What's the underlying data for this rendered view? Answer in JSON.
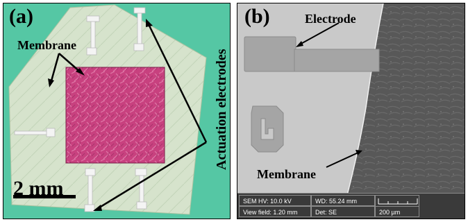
{
  "panel_a": {
    "label": "(a)",
    "membrane_label": "Membrane",
    "actuation_label": "Actuation electrodes",
    "scale_text": "2 mm",
    "colors": {
      "substrate": "#55c7a4",
      "membrane": "#d8e6cf",
      "window": "#c8417f"
    }
  },
  "panel_b": {
    "label": "(b)",
    "electrode_label": "Electrode",
    "membrane_label": "Membrane",
    "sem": {
      "hv": "SEM HV: 10.0 kV",
      "wd": "WD: 55.24 mm",
      "view_field": "View field: 1.20 mm",
      "det": "Det: SE",
      "scale": "200 µm"
    }
  }
}
